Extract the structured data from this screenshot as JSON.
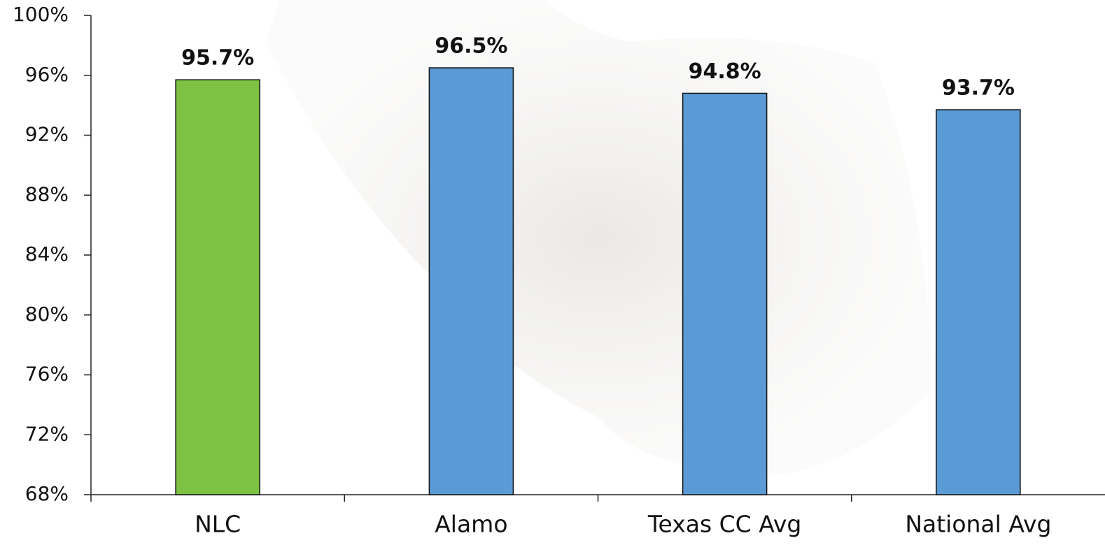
{
  "chart_data": {
    "type": "bar",
    "categories": [
      "NLC",
      "Alamo",
      "Texas CC Avg",
      "National Avg"
    ],
    "values": [
      95.7,
      96.5,
      94.8,
      93.7
    ],
    "value_labels": [
      "95.7%",
      "96.5%",
      "94.8%",
      "93.7%"
    ],
    "colors": [
      "#7dc242",
      "#5b9bd5",
      "#5b9bd5",
      "#5b9bd5"
    ],
    "ylim": [
      68,
      100
    ],
    "yticks": [
      {
        "value": 68,
        "label": "68%"
      },
      {
        "value": 72,
        "label": "72%"
      },
      {
        "value": 76,
        "label": "76%"
      },
      {
        "value": 80,
        "label": "80%"
      },
      {
        "value": 84,
        "label": "84%"
      },
      {
        "value": 88,
        "label": "88%"
      },
      {
        "value": 92,
        "label": "92%"
      },
      {
        "value": 96,
        "label": "96%"
      },
      {
        "value": 100,
        "label": "100%"
      }
    ],
    "grid": false
  }
}
